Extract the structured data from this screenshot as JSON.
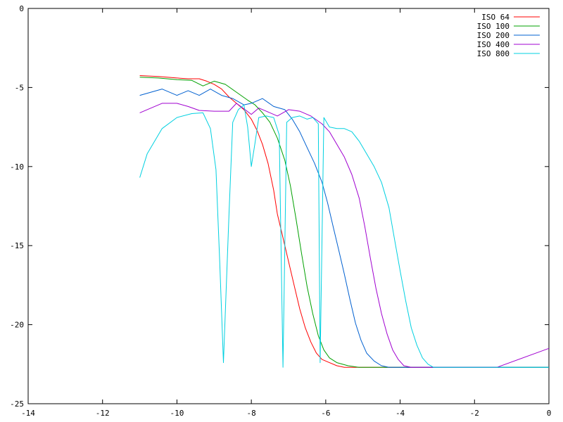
{
  "chart_data": {
    "type": "line",
    "title": "",
    "xlabel": "",
    "ylabel": "",
    "xlim": [
      -14,
      0
    ],
    "ylim": [
      -25,
      0
    ],
    "x_ticks": [
      -14,
      -12,
      -10,
      -8,
      -6,
      -4,
      -2,
      0
    ],
    "y_ticks": [
      0,
      -5,
      -10,
      -15,
      -20,
      -25
    ],
    "x_tick_labels": [
      "-14",
      "-12",
      "-10",
      "-8",
      "-6",
      "-4",
      "-2",
      "0"
    ],
    "y_tick_labels": [
      "0",
      "-5",
      "-10",
      "-15",
      "-20",
      "-25"
    ],
    "grid": false,
    "legend_position": "top-right",
    "floor": -22.7,
    "series": [
      {
        "name": "ISO 64",
        "color": "#ff0000",
        "points": [
          [
            -11.0,
            -4.25
          ],
          [
            -10.5,
            -4.3
          ],
          [
            -10.0,
            -4.4
          ],
          [
            -9.7,
            -4.45
          ],
          [
            -9.4,
            -4.45
          ],
          [
            -9.2,
            -4.6
          ],
          [
            -9.0,
            -4.8
          ],
          [
            -8.8,
            -5.1
          ],
          [
            -8.6,
            -5.6
          ],
          [
            -8.4,
            -6.0
          ],
          [
            -8.2,
            -6.4
          ],
          [
            -8.0,
            -7.0
          ],
          [
            -7.85,
            -7.7
          ],
          [
            -7.7,
            -8.6
          ],
          [
            -7.55,
            -9.8
          ],
          [
            -7.4,
            -11.5
          ],
          [
            -7.3,
            -13.0
          ],
          [
            -7.15,
            -14.5
          ],
          [
            -7.0,
            -16.0
          ],
          [
            -6.85,
            -17.5
          ],
          [
            -6.7,
            -19.0
          ],
          [
            -6.55,
            -20.2
          ],
          [
            -6.4,
            -21.1
          ],
          [
            -6.25,
            -21.8
          ],
          [
            -6.1,
            -22.2
          ],
          [
            -5.9,
            -22.4
          ],
          [
            -5.7,
            -22.6
          ],
          [
            -5.5,
            -22.7
          ],
          [
            -5.0,
            -22.7
          ],
          [
            0,
            -22.7
          ]
        ]
      },
      {
        "name": "ISO 100",
        "color": "#00a000",
        "points": [
          [
            -11.0,
            -4.35
          ],
          [
            -10.5,
            -4.4
          ],
          [
            -10.0,
            -4.5
          ],
          [
            -9.6,
            -4.55
          ],
          [
            -9.3,
            -4.9
          ],
          [
            -9.0,
            -4.6
          ],
          [
            -8.7,
            -4.8
          ],
          [
            -8.4,
            -5.3
          ],
          [
            -8.1,
            -5.8
          ],
          [
            -7.9,
            -6.1
          ],
          [
            -7.7,
            -6.6
          ],
          [
            -7.5,
            -7.2
          ],
          [
            -7.3,
            -8.2
          ],
          [
            -7.1,
            -9.6
          ],
          [
            -6.95,
            -11.2
          ],
          [
            -6.8,
            -13.3
          ],
          [
            -6.65,
            -15.5
          ],
          [
            -6.5,
            -17.6
          ],
          [
            -6.35,
            -19.3
          ],
          [
            -6.2,
            -20.7
          ],
          [
            -6.05,
            -21.6
          ],
          [
            -5.9,
            -22.1
          ],
          [
            -5.7,
            -22.4
          ],
          [
            -5.4,
            -22.6
          ],
          [
            -5.1,
            -22.7
          ],
          [
            0,
            -22.7
          ]
        ]
      },
      {
        "name": "ISO 200",
        "color": "#0060d0",
        "points": [
          [
            -11.0,
            -5.5
          ],
          [
            -10.7,
            -5.3
          ],
          [
            -10.4,
            -5.1
          ],
          [
            -10.0,
            -5.5
          ],
          [
            -9.7,
            -5.2
          ],
          [
            -9.4,
            -5.5
          ],
          [
            -9.1,
            -5.1
          ],
          [
            -8.8,
            -5.5
          ],
          [
            -8.5,
            -5.7
          ],
          [
            -8.2,
            -6.1
          ],
          [
            -8.0,
            -6.0
          ],
          [
            -7.7,
            -5.7
          ],
          [
            -7.4,
            -6.2
          ],
          [
            -7.1,
            -6.4
          ],
          [
            -6.9,
            -7.0
          ],
          [
            -6.7,
            -7.8
          ],
          [
            -6.5,
            -8.8
          ],
          [
            -6.3,
            -9.8
          ],
          [
            -6.1,
            -11.0
          ],
          [
            -5.95,
            -12.3
          ],
          [
            -5.8,
            -13.8
          ],
          [
            -5.65,
            -15.3
          ],
          [
            -5.5,
            -16.8
          ],
          [
            -5.35,
            -18.4
          ],
          [
            -5.2,
            -19.9
          ],
          [
            -5.05,
            -21.0
          ],
          [
            -4.9,
            -21.8
          ],
          [
            -4.7,
            -22.3
          ],
          [
            -4.5,
            -22.6
          ],
          [
            -4.3,
            -22.7
          ],
          [
            0,
            -22.7
          ]
        ]
      },
      {
        "name": "ISO 400",
        "color": "#a000d0",
        "points": [
          [
            -11.0,
            -6.6
          ],
          [
            -10.8,
            -6.4
          ],
          [
            -10.4,
            -6.0
          ],
          [
            -10.0,
            -6.0
          ],
          [
            -9.7,
            -6.2
          ],
          [
            -9.4,
            -6.45
          ],
          [
            -9.0,
            -6.5
          ],
          [
            -8.6,
            -6.5
          ],
          [
            -8.4,
            -6.0
          ],
          [
            -8.2,
            -6.35
          ],
          [
            -8.0,
            -6.7
          ],
          [
            -7.8,
            -6.3
          ],
          [
            -7.6,
            -6.5
          ],
          [
            -7.3,
            -6.8
          ],
          [
            -7.0,
            -6.4
          ],
          [
            -6.7,
            -6.5
          ],
          [
            -6.4,
            -6.8
          ],
          [
            -6.1,
            -7.3
          ],
          [
            -5.9,
            -7.8
          ],
          [
            -5.7,
            -8.6
          ],
          [
            -5.5,
            -9.4
          ],
          [
            -5.3,
            -10.5
          ],
          [
            -5.1,
            -12.0
          ],
          [
            -4.95,
            -13.8
          ],
          [
            -4.8,
            -15.8
          ],
          [
            -4.65,
            -17.7
          ],
          [
            -4.5,
            -19.3
          ],
          [
            -4.35,
            -20.6
          ],
          [
            -4.2,
            -21.6
          ],
          [
            -4.05,
            -22.2
          ],
          [
            -3.9,
            -22.6
          ],
          [
            -3.7,
            -22.7
          ],
          [
            -1.4,
            -22.7
          ],
          [
            0,
            -21.5
          ]
        ]
      },
      {
        "name": "ISO 800",
        "color": "#00d0e0",
        "points": [
          [
            -11.0,
            -10.7
          ],
          [
            -10.8,
            -9.2
          ],
          [
            -10.4,
            -7.6
          ],
          [
            -10.0,
            -6.9
          ],
          [
            -9.6,
            -6.65
          ],
          [
            -9.3,
            -6.6
          ],
          [
            -9.1,
            -7.6
          ],
          [
            -8.95,
            -10.2
          ],
          [
            -8.85,
            -16.0
          ],
          [
            -8.75,
            -22.4
          ],
          [
            -8.6,
            -13.0
          ],
          [
            -8.5,
            -7.2
          ],
          [
            -8.35,
            -6.4
          ],
          [
            -8.2,
            -6.1
          ],
          [
            -8.1,
            -7.5
          ],
          [
            -8.0,
            -10.0
          ],
          [
            -7.9,
            -8.5
          ],
          [
            -7.8,
            -6.9
          ],
          [
            -7.6,
            -6.8
          ],
          [
            -7.4,
            -6.9
          ],
          [
            -7.25,
            -8.0
          ],
          [
            -7.15,
            -22.7
          ],
          [
            -7.05,
            -7.2
          ],
          [
            -6.9,
            -6.9
          ],
          [
            -6.7,
            -6.8
          ],
          [
            -6.5,
            -7.0
          ],
          [
            -6.35,
            -6.9
          ],
          [
            -6.2,
            -7.3
          ],
          [
            -6.15,
            -22.4
          ],
          [
            -6.05,
            -6.9
          ],
          [
            -5.9,
            -7.5
          ],
          [
            -5.7,
            -7.6
          ],
          [
            -5.5,
            -7.6
          ],
          [
            -5.3,
            -7.8
          ],
          [
            -5.1,
            -8.4
          ],
          [
            -4.9,
            -9.2
          ],
          [
            -4.7,
            -10.0
          ],
          [
            -4.5,
            -11.0
          ],
          [
            -4.3,
            -12.6
          ],
          [
            -4.15,
            -14.6
          ],
          [
            -4.0,
            -16.6
          ],
          [
            -3.85,
            -18.5
          ],
          [
            -3.7,
            -20.2
          ],
          [
            -3.55,
            -21.3
          ],
          [
            -3.4,
            -22.1
          ],
          [
            -3.25,
            -22.5
          ],
          [
            -3.1,
            -22.7
          ],
          [
            0,
            -22.7
          ]
        ]
      }
    ]
  }
}
